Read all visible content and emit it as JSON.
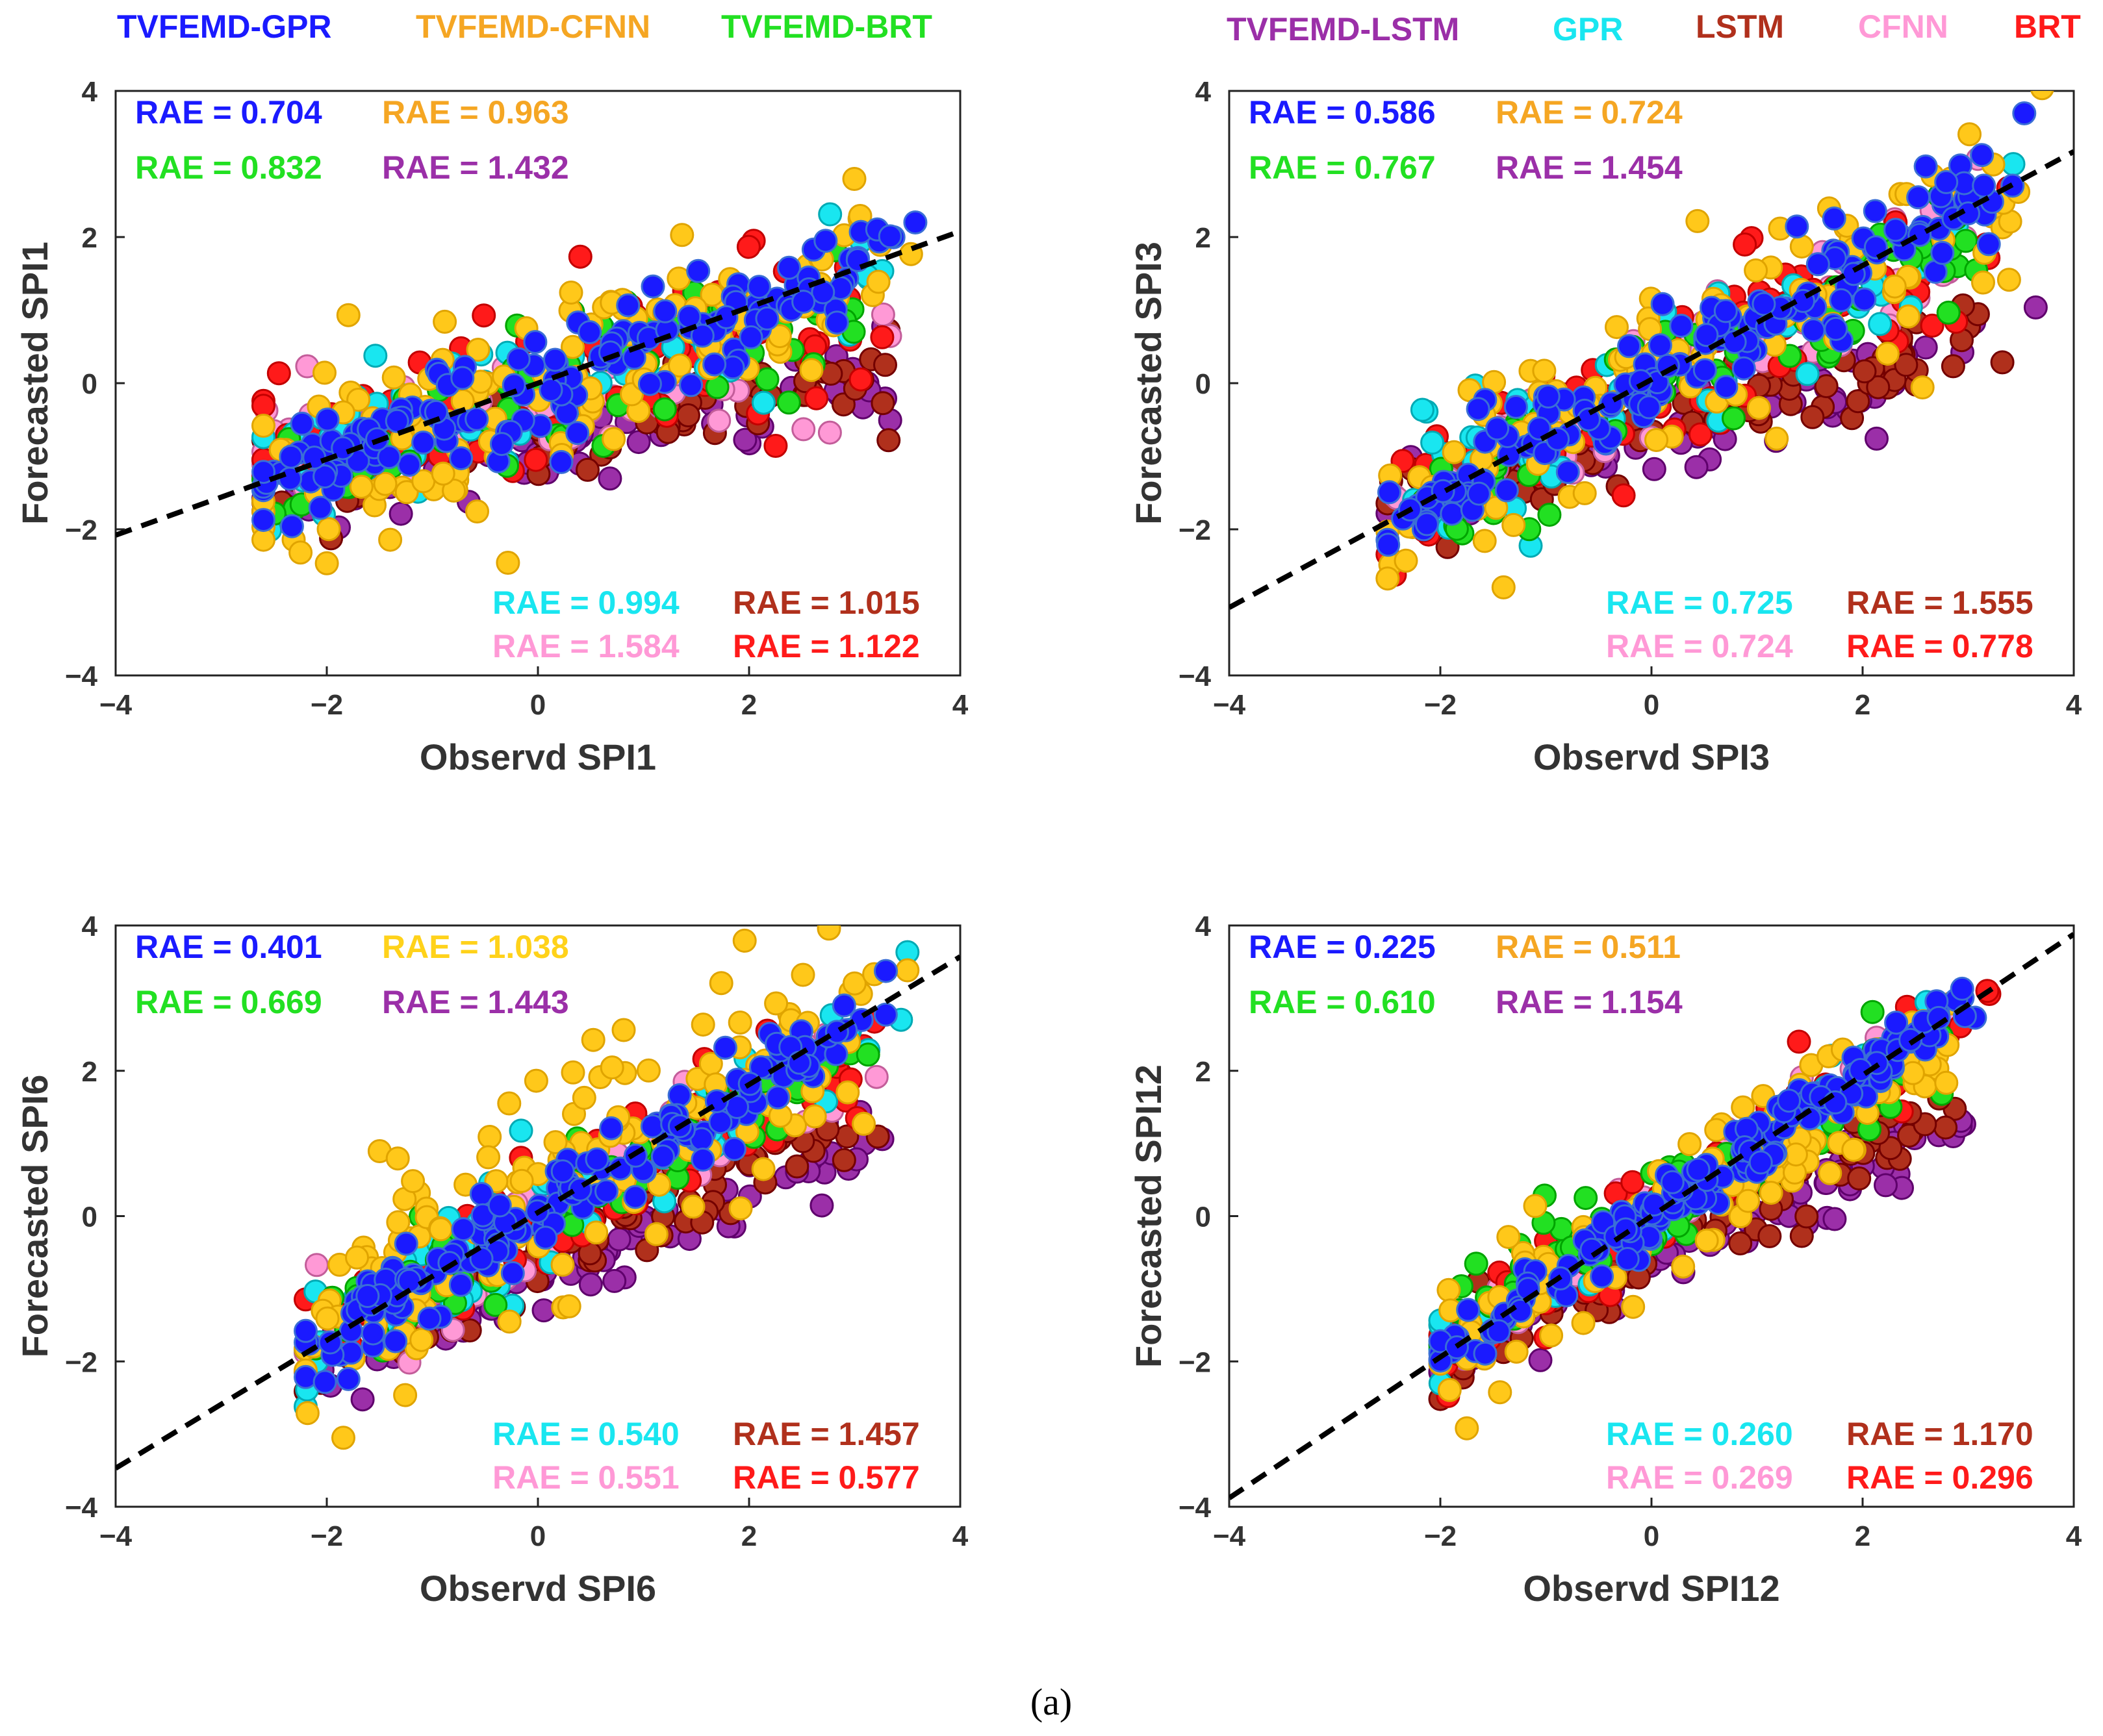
{
  "legend": {
    "items": [
      {
        "id": "tvfemd-gpr",
        "label": "TVFEMD-GPR",
        "color": "#1a1aff"
      },
      {
        "id": "tvfemd-cfnn",
        "label": "TVFEMD-CFNN",
        "color": "#f5a623"
      },
      {
        "id": "tvfemd-brt",
        "label": "TVFEMD-BRT",
        "color": "#22e022"
      },
      {
        "id": "tvfemd-lstm",
        "label": "TVFEMD-LSTM",
        "color": "#9b2fa8"
      },
      {
        "id": "gpr",
        "label": "GPR",
        "color": "#19e6f0"
      },
      {
        "id": "lstm",
        "label": "LSTM",
        "color": "#b0301c"
      },
      {
        "id": "cfnn",
        "label": "CFNN",
        "color": "#ff99d6"
      },
      {
        "id": "brt",
        "label": "BRT",
        "color": "#ff1a1a"
      }
    ]
  },
  "caption": "(a)",
  "chart_data": [
    {
      "type": "scatter",
      "id": "spi1",
      "xlabel": "Observd SPI1",
      "ylabel": "Forecasted SPI1",
      "xlim": [
        -4,
        4
      ],
      "ylim": [
        -4,
        4
      ],
      "xticks": [
        "−4",
        "−2",
        "0",
        "2",
        "4"
      ],
      "yticks": [
        "−4",
        "−2",
        "0",
        "2",
        "4"
      ],
      "fit_line": {
        "slope": 0.52,
        "intercept": 0.0
      },
      "rae": [
        {
          "model": "TVFEMD-GPR",
          "text": "RAE = 0.704",
          "color": "#1a1aff"
        },
        {
          "model": "TVFEMD-CFNN",
          "text": "RAE = 0.963",
          "color": "#f5a623"
        },
        {
          "model": "TVFEMD-BRT",
          "text": "RAE = 0.832",
          "color": "#22e022"
        },
        {
          "model": "TVFEMD-LSTM",
          "text": "RAE = 1.432",
          "color": "#9b2fa8"
        },
        {
          "model": "GPR",
          "text": "RAE = 0.994",
          "color": "#19e6f0"
        },
        {
          "model": "LSTM",
          "text": "RAE = 1.015",
          "color": "#b0301c"
        },
        {
          "model": "CFNN",
          "text": "RAE = 1.584",
          "color": "#ff99d6"
        },
        {
          "model": "BRT",
          "text": "RAE = 1.122",
          "color": "#ff1a1a"
        }
      ],
      "x_range": [
        -2.6,
        3.8
      ],
      "series_params": [
        {
          "model": "TVFEMD-LSTM",
          "slope": 0.32,
          "offset": -0.85,
          "spread": 0.35,
          "n": 90
        },
        {
          "model": "LSTM",
          "slope": 0.2,
          "offset": -0.55,
          "spread": 0.35,
          "n": 90
        },
        {
          "model": "CFNN",
          "slope": 0.25,
          "offset": -0.3,
          "spread": 0.5,
          "n": 70
        },
        {
          "model": "BRT",
          "slope": 0.3,
          "offset": -0.05,
          "spread": 0.6,
          "n": 80
        },
        {
          "model": "GPR",
          "slope": 0.4,
          "offset": 0.0,
          "spread": 0.5,
          "n": 60
        },
        {
          "model": "TVFEMD-BRT",
          "slope": 0.45,
          "offset": -0.1,
          "spread": 0.5,
          "n": 70
        },
        {
          "model": "TVFEMD-CFNN",
          "slope": 0.5,
          "offset": 0.0,
          "spread": 0.8,
          "n": 140
        },
        {
          "model": "TVFEMD-GPR",
          "slope": 0.52,
          "offset": 0.0,
          "spread": 0.4,
          "n": 160
        }
      ]
    },
    {
      "type": "scatter",
      "id": "spi3",
      "xlabel": "Observd SPI3",
      "ylabel": "Forecasted SPI3",
      "xlim": [
        -4,
        4
      ],
      "ylim": [
        -4,
        4
      ],
      "xticks": [
        "−4",
        "−2",
        "0",
        "2",
        "4"
      ],
      "yticks": [
        "−4",
        "−2",
        "0",
        "2",
        "4"
      ],
      "fit_line": {
        "slope": 0.78,
        "intercept": 0.05
      },
      "rae": [
        {
          "model": "TVFEMD-GPR",
          "text": "RAE = 0.586",
          "color": "#1a1aff"
        },
        {
          "model": "TVFEMD-CFNN",
          "text": "RAE = 0.724",
          "color": "#f5a623"
        },
        {
          "model": "TVFEMD-BRT",
          "text": "RAE = 0.767",
          "color": "#22e022"
        },
        {
          "model": "TVFEMD-LSTM",
          "text": "RAE = 1.454",
          "color": "#9b2fa8"
        },
        {
          "model": "GPR",
          "text": "RAE = 0.725",
          "color": "#19e6f0"
        },
        {
          "model": "LSTM",
          "text": "RAE = 1.555",
          "color": "#b0301c"
        },
        {
          "model": "CFNN",
          "text": "RAE = 0.724",
          "color": "#ff99d6"
        },
        {
          "model": "BRT",
          "text": "RAE = 0.778",
          "color": "#ff1a1a"
        }
      ],
      "x_range": [
        -2.5,
        3.7
      ],
      "series_params": [
        {
          "model": "TVFEMD-LSTM",
          "slope": 0.45,
          "offset": -0.75,
          "spread": 0.3,
          "n": 90
        },
        {
          "model": "LSTM",
          "slope": 0.45,
          "offset": -0.6,
          "spread": 0.35,
          "n": 90
        },
        {
          "model": "CFNN",
          "slope": 0.65,
          "offset": 0.0,
          "spread": 0.45,
          "n": 70
        },
        {
          "model": "BRT",
          "slope": 0.65,
          "offset": 0.0,
          "spread": 0.55,
          "n": 80
        },
        {
          "model": "GPR",
          "slope": 0.7,
          "offset": 0.0,
          "spread": 0.45,
          "n": 60
        },
        {
          "model": "TVFEMD-BRT",
          "slope": 0.7,
          "offset": -0.05,
          "spread": 0.45,
          "n": 70
        },
        {
          "model": "TVFEMD-CFNN",
          "slope": 0.72,
          "offset": 0.0,
          "spread": 0.65,
          "n": 130
        },
        {
          "model": "TVFEMD-GPR",
          "slope": 0.78,
          "offset": 0.05,
          "spread": 0.35,
          "n": 160
        }
      ]
    },
    {
      "type": "scatter",
      "id": "spi6",
      "xlabel": "Observd SPI6",
      "ylabel": "Forecasted SPI6",
      "xlim": [
        -4,
        4
      ],
      "ylim": [
        -4,
        4
      ],
      "xticks": [
        "−4",
        "−2",
        "0",
        "2",
        "4"
      ],
      "yticks": [
        "−4",
        "−2",
        "0",
        "2",
        "4"
      ],
      "fit_line": {
        "slope": 0.88,
        "intercept": 0.05
      },
      "rae": [
        {
          "model": "TVFEMD-GPR",
          "text": "RAE = 0.401",
          "color": "#1a1aff"
        },
        {
          "model": "TVFEMD-CFNN",
          "text": "RAE = 1.038",
          "color": "#ffd21a"
        },
        {
          "model": "TVFEMD-BRT",
          "text": "RAE = 0.669",
          "color": "#22e022"
        },
        {
          "model": "TVFEMD-LSTM",
          "text": "RAE = 1.443",
          "color": "#9b2fa8"
        },
        {
          "model": "GPR",
          "text": "RAE = 0.540",
          "color": "#19e6f0"
        },
        {
          "model": "LSTM",
          "text": "RAE = 1.457",
          "color": "#b0301c"
        },
        {
          "model": "CFNN",
          "text": "RAE = 0.551",
          "color": "#ff99d6"
        },
        {
          "model": "BRT",
          "text": "RAE = 0.577",
          "color": "#ff1a1a"
        }
      ],
      "x_range": [
        -2.2,
        3.5
      ],
      "series_params": [
        {
          "model": "TVFEMD-LSTM",
          "slope": 0.55,
          "offset": -0.75,
          "spread": 0.3,
          "n": 90
        },
        {
          "model": "LSTM",
          "slope": 0.6,
          "offset": -0.55,
          "spread": 0.35,
          "n": 90
        },
        {
          "model": "CFNN",
          "slope": 0.75,
          "offset": -0.05,
          "spread": 0.4,
          "n": 70
        },
        {
          "model": "BRT",
          "slope": 0.75,
          "offset": 0.0,
          "spread": 0.45,
          "n": 80
        },
        {
          "model": "GPR",
          "slope": 0.8,
          "offset": 0.0,
          "spread": 0.4,
          "n": 60
        },
        {
          "model": "TVFEMD-BRT",
          "slope": 0.75,
          "offset": -0.1,
          "spread": 0.4,
          "n": 70
        },
        {
          "model": "TVFEMD-CFNN",
          "slope": 0.85,
          "offset": 0.3,
          "spread": 0.75,
          "n": 150
        },
        {
          "model": "TVFEMD-GPR",
          "slope": 0.88,
          "offset": 0.05,
          "spread": 0.3,
          "n": 160
        }
      ]
    },
    {
      "type": "scatter",
      "id": "spi12",
      "xlabel": "Observd SPI12",
      "ylabel": "Forecasted SPI12",
      "xlim": [
        -4,
        4
      ],
      "ylim": [
        -4,
        4
      ],
      "xticks": [
        "−4",
        "−2",
        "0",
        "2",
        "4"
      ],
      "yticks": [
        "−4",
        "−2",
        "0",
        "2",
        "4"
      ],
      "fit_line": {
        "slope": 0.97,
        "intercept": 0.0
      },
      "rae": [
        {
          "model": "TVFEMD-GPR",
          "text": "RAE = 0.225",
          "color": "#1a1aff"
        },
        {
          "model": "TVFEMD-CFNN",
          "text": "RAE = 0.511",
          "color": "#f5a623"
        },
        {
          "model": "TVFEMD-BRT",
          "text": "RAE = 0.610",
          "color": "#22e022"
        },
        {
          "model": "TVFEMD-LSTM",
          "text": "RAE = 1.154",
          "color": "#9b2fa8"
        },
        {
          "model": "GPR",
          "text": "RAE = 0.260",
          "color": "#19e6f0"
        },
        {
          "model": "LSTM",
          "text": "RAE = 1.170",
          "color": "#b0301c"
        },
        {
          "model": "CFNN",
          "text": "RAE = 0.269",
          "color": "#ff99d6"
        },
        {
          "model": "BRT",
          "text": "RAE = 0.296",
          "color": "#ff1a1a"
        }
      ],
      "x_range": [
        -2.0,
        3.2
      ],
      "series_params": [
        {
          "model": "TVFEMD-LSTM",
          "slope": 0.65,
          "offset": -0.65,
          "spread": 0.25,
          "n": 90
        },
        {
          "model": "LSTM",
          "slope": 0.7,
          "offset": -0.55,
          "spread": 0.3,
          "n": 90
        },
        {
          "model": "CFNN",
          "slope": 0.9,
          "offset": 0.0,
          "spread": 0.3,
          "n": 70
        },
        {
          "model": "BRT",
          "slope": 0.9,
          "offset": 0.0,
          "spread": 0.35,
          "n": 80
        },
        {
          "model": "GPR",
          "slope": 0.95,
          "offset": 0.0,
          "spread": 0.25,
          "n": 60
        },
        {
          "model": "TVFEMD-BRT",
          "slope": 0.8,
          "offset": 0.05,
          "spread": 0.35,
          "n": 80
        },
        {
          "model": "TVFEMD-CFNN",
          "slope": 0.85,
          "offset": -0.1,
          "spread": 0.5,
          "n": 120
        },
        {
          "model": "TVFEMD-GPR",
          "slope": 0.97,
          "offset": 0.0,
          "spread": 0.22,
          "n": 160
        }
      ]
    }
  ]
}
